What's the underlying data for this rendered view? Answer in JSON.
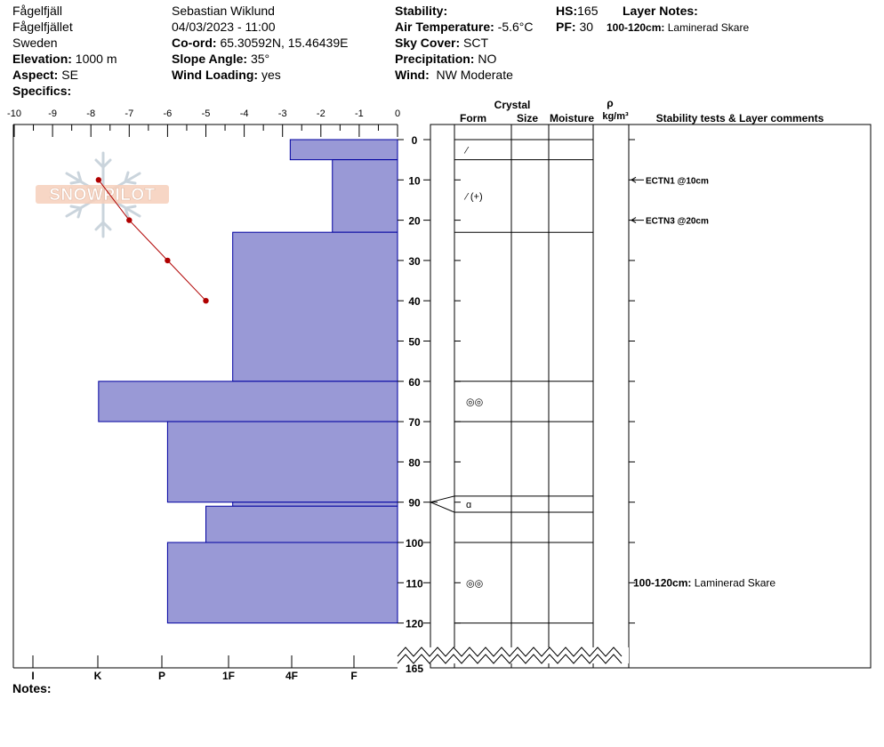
{
  "header": {
    "location": "Fågelfjäll",
    "site": "Fågelfjället",
    "country": "Sweden",
    "elevation_label": "Elevation:",
    "elevation": "1000 m",
    "aspect_label": "Aspect:",
    "aspect": "SE",
    "specifics_label": "Specifics:",
    "observer": "Sebastian Wiklund",
    "datetime": "04/03/2023 - 11:00",
    "coord_label": "Co-ord:",
    "coord": "65.30592N, 15.46439E",
    "slope_label": "Slope Angle:",
    "slope": "35°",
    "wind_loading_label": "Wind Loading:",
    "wind_loading": "yes",
    "stability_label": "Stability:",
    "air_temp_label": "Air Temperature:",
    "air_temp": "-5.6°C",
    "sky_label": "Sky Cover:",
    "sky": "SCT",
    "precip_label": "Precipitation:",
    "precip": "NO",
    "wind_label": "Wind:",
    "wind": "NW Moderate",
    "hs_label": "HS:",
    "hs": "165",
    "pf_label": "PF:",
    "pf": "30",
    "layer_notes_label": "Layer Notes:",
    "layer_note_depth": "100-120cm:",
    "layer_note_text": "Laminerad Skare"
  },
  "logo_text": "SNOWPILOT",
  "columns": {
    "crystal": "Crystal",
    "form": "Form",
    "size": "Size",
    "moisture": "Moisture",
    "rho": "ρ",
    "density_unit": "kg/m³",
    "stability": "Stability tests & Layer comments"
  },
  "notes_label": "Notes:",
  "chart_data": {
    "type": "snow-profile",
    "temperature_axis": {
      "ticks": [
        "-10",
        "-9",
        "-8",
        "-7",
        "-6",
        "-5",
        "-4",
        "-3",
        "-2",
        "-1",
        "0"
      ],
      "range": [
        -10,
        0
      ]
    },
    "hardness_axis": {
      "ticks": [
        "I",
        "K",
        "P",
        "1F",
        "4F",
        "F"
      ]
    },
    "depth_axis": {
      "ticks": [
        "0",
        "10",
        "20",
        "30",
        "40",
        "50",
        "60",
        "70",
        "80",
        "90",
        "100",
        "110",
        "120"
      ],
      "range": [
        0,
        120
      ],
      "total_depth_label": "165"
    },
    "hardness_layers": [
      {
        "top": 0,
        "bottom": 5,
        "hardness_index": 2.8
      },
      {
        "top": 5,
        "bottom": 23,
        "hardness_index": 1.7
      },
      {
        "top": 23,
        "bottom": 60,
        "hardness_index": 4.3
      },
      {
        "top": 60,
        "bottom": 70,
        "hardness_index": 7.8
      },
      {
        "top": 70,
        "bottom": 90,
        "hardness_index": 6.0
      },
      {
        "top": 90,
        "bottom": 91,
        "hardness_index": 4.3
      },
      {
        "top": 91,
        "bottom": 100,
        "hardness_index": 5.0
      },
      {
        "top": 100,
        "bottom": 120,
        "hardness_index": 6.0
      }
    ],
    "temperature_profile": [
      {
        "depth": 10,
        "temp": -7.8
      },
      {
        "depth": 20,
        "temp": -7.0
      },
      {
        "depth": 30,
        "temp": -6.0
      },
      {
        "depth": 40,
        "temp": -5.0
      }
    ],
    "layer_boundaries": [
      0,
      5,
      23,
      60,
      70,
      88.5,
      92.5,
      100,
      120
    ],
    "grain_symbols": [
      {
        "depth": 2.5,
        "symbol": "⁄"
      },
      {
        "depth": 14,
        "symbol": "⁄ (+)"
      },
      {
        "depth": 65,
        "symbol": "◎◎"
      },
      {
        "depth": 90.5,
        "symbol": "ɑ"
      },
      {
        "depth": 110,
        "symbol": "◎◎"
      }
    ],
    "stability_tests": [
      {
        "depth": 10,
        "label": "ECTN1 @10cm"
      },
      {
        "depth": 20,
        "label": "ECTN3 @20cm"
      }
    ],
    "layer_comment": {
      "depth": 110,
      "range": "100-120cm:",
      "text": "Laminerad Skare"
    },
    "colors": {
      "hardness_fill": "#9999d6",
      "hardness_stroke": "#0000a0",
      "temperature": "#b00000"
    }
  }
}
